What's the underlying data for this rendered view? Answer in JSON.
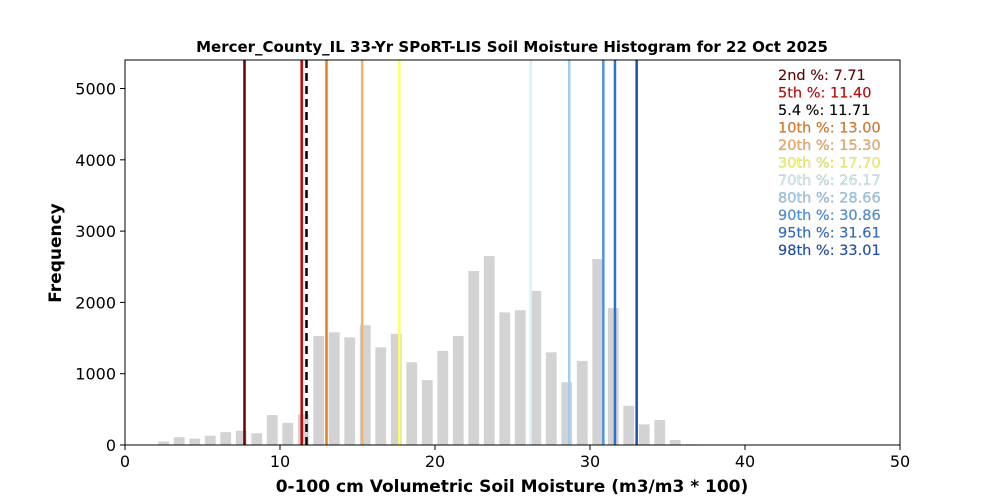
{
  "chart_data": {
    "type": "bar",
    "title": "Mercer_County_IL 33-Yr SPoRT-LIS Soil Moisture Histogram for 22 Oct 2025",
    "xlabel": "0-100 cm Volumetric Soil Moisture (m3/m3 * 100)",
    "ylabel": "Frequency",
    "xlim": [
      0,
      50
    ],
    "ylim": [
      0,
      5400
    ],
    "xticks": [
      "0",
      "10",
      "20",
      "30",
      "40",
      "50"
    ],
    "yticks": [
      "0",
      "1000",
      "2000",
      "3000",
      "4000",
      "5000"
    ],
    "grid": false,
    "bar_color": "#d3d3d3",
    "bins": [
      {
        "x": 2.5,
        "count": 50
      },
      {
        "x": 3.5,
        "count": 110
      },
      {
        "x": 4.5,
        "count": 90
      },
      {
        "x": 5.5,
        "count": 130
      },
      {
        "x": 6.5,
        "count": 180
      },
      {
        "x": 7.5,
        "count": 200
      },
      {
        "x": 8.5,
        "count": 165
      },
      {
        "x": 9.5,
        "count": 420
      },
      {
        "x": 10.5,
        "count": 310
      },
      {
        "x": 11.5,
        "count": 430
      },
      {
        "x": 12.5,
        "count": 1530
      },
      {
        "x": 13.5,
        "count": 1580
      },
      {
        "x": 14.5,
        "count": 1510
      },
      {
        "x": 15.5,
        "count": 1680
      },
      {
        "x": 16.5,
        "count": 1370
      },
      {
        "x": 17.5,
        "count": 1560
      },
      {
        "x": 18.5,
        "count": 1160
      },
      {
        "x": 19.5,
        "count": 910
      },
      {
        "x": 20.5,
        "count": 1320
      },
      {
        "x": 21.5,
        "count": 1530
      },
      {
        "x": 22.5,
        "count": 2440
      },
      {
        "x": 23.5,
        "count": 2650
      },
      {
        "x": 24.5,
        "count": 1860
      },
      {
        "x": 25.5,
        "count": 1890
      },
      {
        "x": 26.5,
        "count": 2160
      },
      {
        "x": 27.5,
        "count": 1300
      },
      {
        "x": 28.5,
        "count": 880
      },
      {
        "x": 29.5,
        "count": 1180
      },
      {
        "x": 30.5,
        "count": 2610
      },
      {
        "x": 31.5,
        "count": 1920
      },
      {
        "x": 32.5,
        "count": 550
      },
      {
        "x": 33.5,
        "count": 290
      },
      {
        "x": 34.5,
        "count": 350
      },
      {
        "x": 35.5,
        "count": 70
      },
      {
        "x": 36.5,
        "count": 10
      }
    ],
    "bar_width": 0.7,
    "percentile_lines": [
      {
        "label": "2nd %: 7.71",
        "value": 7.71,
        "color": "#6b0000",
        "dashed": false
      },
      {
        "label": "5th %: 11.40",
        "value": 11.4,
        "color": "#cc0000",
        "dashed": false
      },
      {
        "label": "5.4 %: 11.71",
        "value": 11.71,
        "color": "#000000",
        "dashed": true
      },
      {
        "label": "10th %: 13.00",
        "value": 13.0,
        "color": "#e67e22",
        "dashed": false
      },
      {
        "label": "20th %: 15.30",
        "value": 15.3,
        "color": "#f5b26b",
        "dashed": false
      },
      {
        "label": "30th %: 17.70",
        "value": 17.7,
        "color": "#ffff66",
        "dashed": false
      },
      {
        "label": "70th %: 26.17",
        "value": 26.17,
        "color": "#d6f3f7",
        "dashed": false
      },
      {
        "label": "80th %: 28.66",
        "value": 28.66,
        "color": "#9ccdf2",
        "dashed": false
      },
      {
        "label": "90th %: 30.86",
        "value": 30.86,
        "color": "#4d94e0",
        "dashed": false
      },
      {
        "label": "95th %: 31.61",
        "value": 31.61,
        "color": "#2e6fcf",
        "dashed": false
      },
      {
        "label": "98th %: 33.01",
        "value": 33.01,
        "color": "#1c4fb0",
        "dashed": false
      }
    ],
    "legend_placement": "top-right"
  }
}
